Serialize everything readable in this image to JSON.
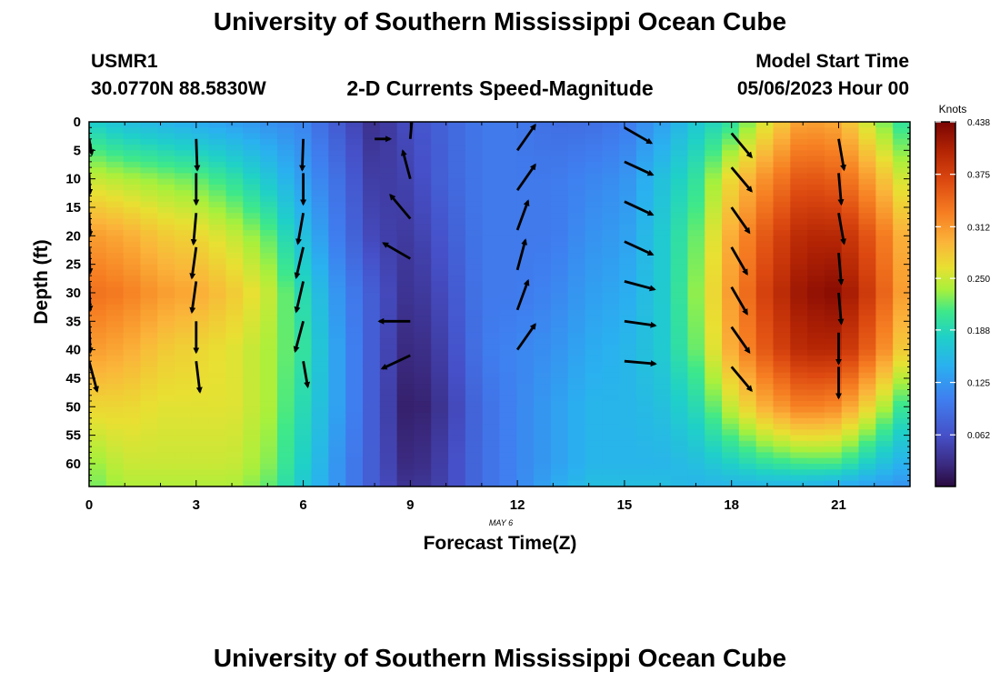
{
  "page": {
    "title": "University of Southern Mississippi Ocean Cube",
    "station": "USMR1",
    "location": "30.0770N  88.5830W",
    "subtitle": "2-D Currents Speed-Magnitude",
    "model_start_label": "Model Start Time",
    "model_start_value": "05/06/2023 Hour 00",
    "date_label": "MAY 6",
    "footer_title": "University of Southern Mississippi Ocean Cube"
  },
  "chart_data": {
    "type": "heatmap",
    "xlabel": "Forecast Time(Z)",
    "ylabel": "Depth (ft)",
    "xlim": [
      0,
      23
    ],
    "ylim": [
      0,
      64
    ],
    "y_inverted": true,
    "x_ticks": [
      0,
      3,
      6,
      9,
      12,
      15,
      18,
      21
    ],
    "y_ticks": [
      0,
      5,
      10,
      15,
      20,
      25,
      30,
      35,
      40,
      45,
      50,
      55,
      60
    ],
    "colorbar": {
      "title": "Knots",
      "range": [
        0,
        0.438
      ],
      "ticks": [
        "0.438",
        "0.375",
        "0.312",
        "0.250",
        "0.188",
        "0.125",
        "0.062"
      ],
      "tick_values": [
        0.438,
        0.375,
        0.312,
        0.25,
        0.188,
        0.125,
        0.062
      ]
    },
    "speed_profiles": {
      "hours": [
        0,
        1,
        2,
        3,
        4,
        5,
        6,
        7,
        8,
        9,
        10,
        11,
        12,
        13,
        14,
        15,
        16,
        17,
        18,
        19,
        20,
        21,
        22,
        23
      ],
      "depths_ft": [
        0,
        10,
        20,
        30,
        40,
        50,
        60,
        64
      ],
      "values_knots": [
        [
          0.18,
          0.25,
          0.31,
          0.34,
          0.31,
          0.27,
          0.23,
          0.22
        ],
        [
          0.16,
          0.24,
          0.3,
          0.33,
          0.3,
          0.27,
          0.25,
          0.24
        ],
        [
          0.15,
          0.23,
          0.28,
          0.31,
          0.28,
          0.26,
          0.25,
          0.24
        ],
        [
          0.14,
          0.22,
          0.27,
          0.3,
          0.27,
          0.26,
          0.25,
          0.24
        ],
        [
          0.13,
          0.2,
          0.25,
          0.28,
          0.26,
          0.26,
          0.25,
          0.24
        ],
        [
          0.12,
          0.17,
          0.22,
          0.25,
          0.24,
          0.24,
          0.23,
          0.22
        ],
        [
          0.11,
          0.13,
          0.16,
          0.19,
          0.2,
          0.19,
          0.18,
          0.17
        ],
        [
          0.07,
          0.09,
          0.1,
          0.12,
          0.13,
          0.13,
          0.12,
          0.12
        ],
        [
          0.03,
          0.04,
          0.05,
          0.07,
          0.07,
          0.07,
          0.07,
          0.07
        ],
        [
          0.06,
          0.05,
          0.04,
          0.03,
          0.02,
          0.01,
          0.02,
          0.03
        ],
        [
          0.08,
          0.08,
          0.07,
          0.06,
          0.05,
          0.04,
          0.05,
          0.05
        ],
        [
          0.1,
          0.1,
          0.1,
          0.1,
          0.1,
          0.09,
          0.09,
          0.09
        ],
        [
          0.1,
          0.1,
          0.1,
          0.1,
          0.11,
          0.11,
          0.11,
          0.11
        ],
        [
          0.09,
          0.1,
          0.1,
          0.11,
          0.12,
          0.13,
          0.13,
          0.14
        ],
        [
          0.09,
          0.11,
          0.12,
          0.13,
          0.14,
          0.15,
          0.15,
          0.16
        ],
        [
          0.1,
          0.12,
          0.13,
          0.14,
          0.15,
          0.15,
          0.15,
          0.16
        ],
        [
          0.13,
          0.16,
          0.17,
          0.17,
          0.17,
          0.16,
          0.15,
          0.16
        ],
        [
          0.17,
          0.2,
          0.22,
          0.23,
          0.22,
          0.19,
          0.16,
          0.15
        ],
        [
          0.2,
          0.27,
          0.3,
          0.31,
          0.3,
          0.25,
          0.18,
          0.15
        ],
        [
          0.26,
          0.32,
          0.36,
          0.38,
          0.36,
          0.3,
          0.2,
          0.15
        ],
        [
          0.31,
          0.36,
          0.4,
          0.42,
          0.4,
          0.33,
          0.21,
          0.15
        ],
        [
          0.3,
          0.35,
          0.4,
          0.43,
          0.4,
          0.32,
          0.21,
          0.14
        ],
        [
          0.24,
          0.3,
          0.35,
          0.37,
          0.34,
          0.26,
          0.17,
          0.13
        ],
        [
          0.19,
          0.24,
          0.28,
          0.29,
          0.26,
          0.19,
          0.14,
          0.12
        ]
      ]
    },
    "vectors": [
      {
        "hour": 0,
        "depth_ft": 3,
        "dir_deg": 170,
        "speed": 0.15
      },
      {
        "hour": 0,
        "depth_ft": 9,
        "dir_deg": 178,
        "speed": 0.2
      },
      {
        "hour": 0,
        "depth_ft": 16,
        "dir_deg": 178,
        "speed": 0.22
      },
      {
        "hour": 0,
        "depth_ft": 22,
        "dir_deg": 178,
        "speed": 0.25
      },
      {
        "hour": 0,
        "depth_ft": 28,
        "dir_deg": 178,
        "speed": 0.28
      },
      {
        "hour": 0,
        "depth_ft": 35,
        "dir_deg": 178,
        "speed": 0.3
      },
      {
        "hour": 0,
        "depth_ft": 42,
        "dir_deg": 165,
        "speed": 0.3
      },
      {
        "hour": 3,
        "depth_ft": 3,
        "dir_deg": 178,
        "speed": 0.3
      },
      {
        "hour": 3,
        "depth_ft": 9,
        "dir_deg": 180,
        "speed": 0.3
      },
      {
        "hour": 3,
        "depth_ft": 16,
        "dir_deg": 185,
        "speed": 0.3
      },
      {
        "hour": 3,
        "depth_ft": 22,
        "dir_deg": 188,
        "speed": 0.3
      },
      {
        "hour": 3,
        "depth_ft": 28,
        "dir_deg": 188,
        "speed": 0.3
      },
      {
        "hour": 3,
        "depth_ft": 35,
        "dir_deg": 180,
        "speed": 0.3
      },
      {
        "hour": 3,
        "depth_ft": 42,
        "dir_deg": 173,
        "speed": 0.3
      },
      {
        "hour": 6,
        "depth_ft": 3,
        "dir_deg": 182,
        "speed": 0.3
      },
      {
        "hour": 6,
        "depth_ft": 9,
        "dir_deg": 180,
        "speed": 0.3
      },
      {
        "hour": 6,
        "depth_ft": 16,
        "dir_deg": 190,
        "speed": 0.3
      },
      {
        "hour": 6,
        "depth_ft": 22,
        "dir_deg": 193,
        "speed": 0.3
      },
      {
        "hour": 6,
        "depth_ft": 28,
        "dir_deg": 193,
        "speed": 0.3
      },
      {
        "hour": 6,
        "depth_ft": 35,
        "dir_deg": 195,
        "speed": 0.3
      },
      {
        "hour": 6,
        "depth_ft": 42,
        "dir_deg": 170,
        "speed": 0.25
      },
      {
        "hour": 8,
        "depth_ft": 3,
        "dir_deg": 90,
        "speed": 0.15
      },
      {
        "hour": 9,
        "depth_ft": 3,
        "dir_deg": 5,
        "speed": 0.25
      },
      {
        "hour": 9,
        "depth_ft": 10,
        "dir_deg": 345,
        "speed": 0.28
      },
      {
        "hour": 9,
        "depth_ft": 17,
        "dir_deg": 320,
        "speed": 0.3
      },
      {
        "hour": 9,
        "depth_ft": 24,
        "dir_deg": 300,
        "speed": 0.3
      },
      {
        "hour": 9,
        "depth_ft": 35,
        "dir_deg": 270,
        "speed": 0.3
      },
      {
        "hour": 9,
        "depth_ft": 41,
        "dir_deg": 245,
        "speed": 0.3
      },
      {
        "hour": 12,
        "depth_ft": 5,
        "dir_deg": 35,
        "speed": 0.3
      },
      {
        "hour": 12,
        "depth_ft": 12,
        "dir_deg": 35,
        "speed": 0.3
      },
      {
        "hour": 12,
        "depth_ft": 19,
        "dir_deg": 20,
        "speed": 0.3
      },
      {
        "hour": 12,
        "depth_ft": 26,
        "dir_deg": 15,
        "speed": 0.3
      },
      {
        "hour": 12,
        "depth_ft": 33,
        "dir_deg": 20,
        "speed": 0.3
      },
      {
        "hour": 12,
        "depth_ft": 40,
        "dir_deg": 35,
        "speed": 0.3
      },
      {
        "hour": 15,
        "depth_ft": 1,
        "dir_deg": 120,
        "speed": 0.3
      },
      {
        "hour": 15,
        "depth_ft": 7,
        "dir_deg": 115,
        "speed": 0.3
      },
      {
        "hour": 15,
        "depth_ft": 14,
        "dir_deg": 115,
        "speed": 0.3
      },
      {
        "hour": 15,
        "depth_ft": 21,
        "dir_deg": 115,
        "speed": 0.3
      },
      {
        "hour": 15,
        "depth_ft": 28,
        "dir_deg": 105,
        "speed": 0.3
      },
      {
        "hour": 15,
        "depth_ft": 35,
        "dir_deg": 98,
        "speed": 0.3
      },
      {
        "hour": 15,
        "depth_ft": 42,
        "dir_deg": 95,
        "speed": 0.3
      },
      {
        "hour": 18,
        "depth_ft": 2,
        "dir_deg": 140,
        "speed": 0.3
      },
      {
        "hour": 18,
        "depth_ft": 8,
        "dir_deg": 140,
        "speed": 0.3
      },
      {
        "hour": 18,
        "depth_ft": 15,
        "dir_deg": 145,
        "speed": 0.3
      },
      {
        "hour": 18,
        "depth_ft": 22,
        "dir_deg": 150,
        "speed": 0.3
      },
      {
        "hour": 18,
        "depth_ft": 29,
        "dir_deg": 150,
        "speed": 0.3
      },
      {
        "hour": 18,
        "depth_ft": 36,
        "dir_deg": 145,
        "speed": 0.3
      },
      {
        "hour": 18,
        "depth_ft": 43,
        "dir_deg": 140,
        "speed": 0.3
      },
      {
        "hour": 21,
        "depth_ft": 3,
        "dir_deg": 170,
        "speed": 0.3
      },
      {
        "hour": 21,
        "depth_ft": 9,
        "dir_deg": 175,
        "speed": 0.3
      },
      {
        "hour": 21,
        "depth_ft": 16,
        "dir_deg": 170,
        "speed": 0.3
      },
      {
        "hour": 21,
        "depth_ft": 23,
        "dir_deg": 175,
        "speed": 0.3
      },
      {
        "hour": 21,
        "depth_ft": 30,
        "dir_deg": 175,
        "speed": 0.3
      },
      {
        "hour": 21,
        "depth_ft": 37,
        "dir_deg": 180,
        "speed": 0.3
      },
      {
        "hour": 21,
        "depth_ft": 43,
        "dir_deg": 180,
        "speed": 0.3
      }
    ]
  }
}
